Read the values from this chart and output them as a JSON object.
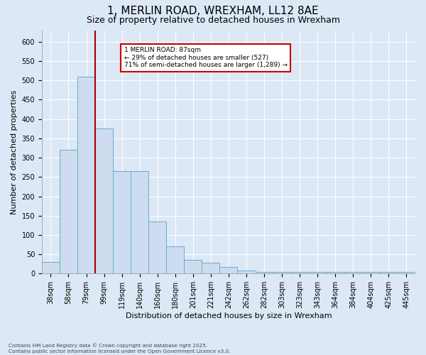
{
  "title": "1, MERLIN ROAD, WREXHAM, LL12 8AE",
  "subtitle": "Size of property relative to detached houses in Wrexham",
  "xlabel": "Distribution of detached houses by size in Wrexham",
  "ylabel": "Number of detached properties",
  "footnote": "Contains HM Land Registry data © Crown copyright and database right 2025.\nContains public sector information licensed under the Open Government Licence v3.0.",
  "bar_labels": [
    "38sqm",
    "58sqm",
    "79sqm",
    "99sqm",
    "119sqm",
    "140sqm",
    "160sqm",
    "180sqm",
    "201sqm",
    "221sqm",
    "242sqm",
    "262sqm",
    "282sqm",
    "303sqm",
    "323sqm",
    "343sqm",
    "364sqm",
    "384sqm",
    "404sqm",
    "425sqm",
    "445sqm"
  ],
  "bar_values": [
    30,
    320,
    510,
    375,
    265,
    265,
    135,
    70,
    35,
    28,
    18,
    8,
    5,
    5,
    4,
    4,
    4,
    4,
    4,
    4,
    4
  ],
  "bar_color": "#cddcee",
  "bar_edge_color": "#6aaad4",
  "vline_index": 2.5,
  "vline_color": "#aa0000",
  "vline_label_title": "1 MERLIN ROAD: 87sqm",
  "vline_label_line1": "← 29% of detached houses are smaller (527)",
  "vline_label_line2": "71% of semi-detached houses are larger (1,289) →",
  "annotation_box_color": "#cc0000",
  "ylim": [
    0,
    630
  ],
  "yticks": [
    0,
    50,
    100,
    150,
    200,
    250,
    300,
    350,
    400,
    450,
    500,
    550,
    600
  ],
  "background_color": "#dce8f5",
  "plot_background_color": "#dce8f5",
  "grid_color": "#ffffff",
  "title_fontsize": 11,
  "subtitle_fontsize": 9,
  "label_fontsize": 8,
  "tick_fontsize": 7
}
